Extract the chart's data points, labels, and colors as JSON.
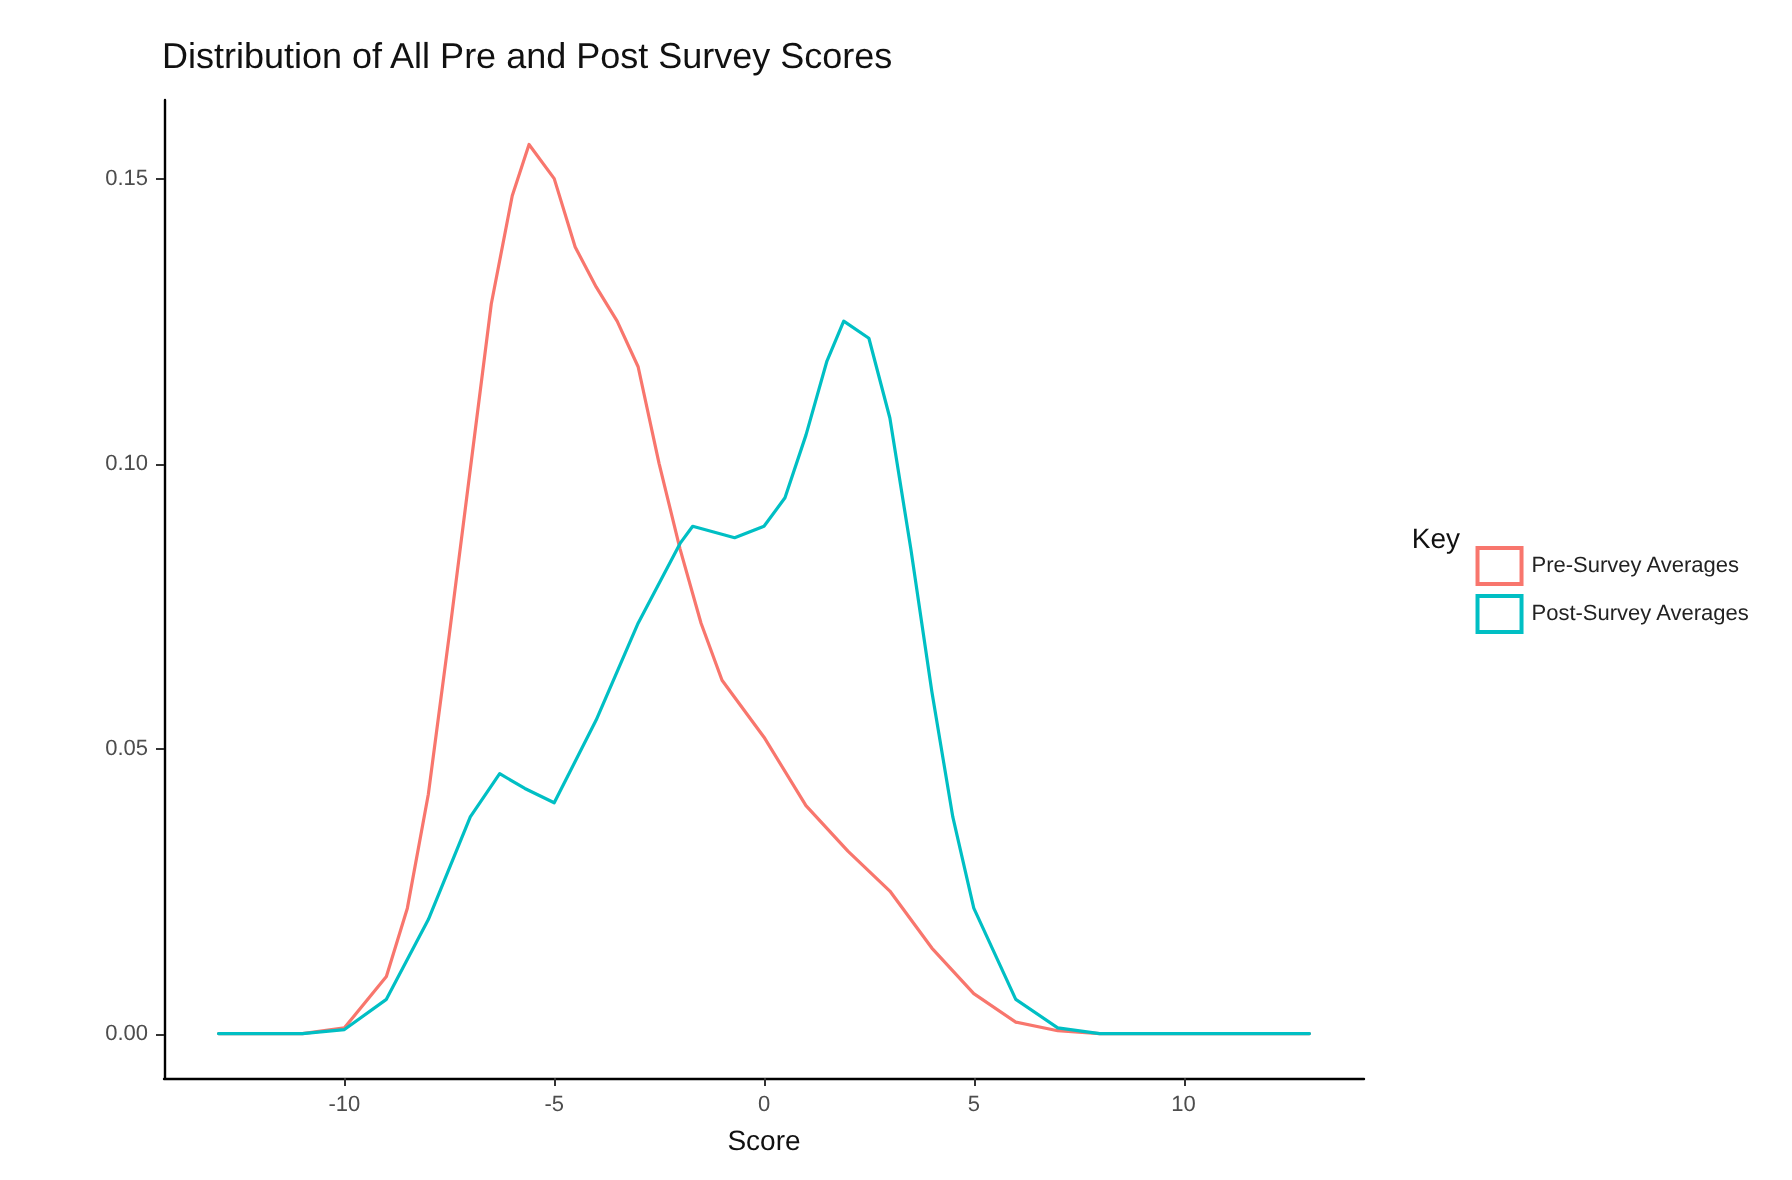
{
  "chart_data": {
    "type": "line",
    "title": "Distribution of All Pre and Post Survey Scores",
    "xlabel": "Score",
    "legend_title": "Key",
    "legend": "right",
    "grid": false,
    "marker": "none",
    "line_style": "solid",
    "xlim": [
      -14.3,
      14.3
    ],
    "xticks": [
      -10,
      -5,
      0,
      5,
      10
    ],
    "ylim": [
      -0.0078,
      0.1638
    ],
    "yticks": [
      {
        "value": 0,
        "label": "0.00"
      },
      {
        "value": 0.05,
        "label": "0.05"
      },
      {
        "value": 0.1,
        "label": "0.10"
      },
      {
        "value": 0.15,
        "label": "0.15"
      }
    ],
    "series": [
      {
        "name": "Pre-Survey Averages",
        "color": "#f8766d",
        "x": [
          -13,
          -11,
          -10,
          -9,
          -8.5,
          -8,
          -7.5,
          -7,
          -6.5,
          -6,
          -5.6,
          -5,
          -4.5,
          -4,
          -3.5,
          -3,
          -2.5,
          -2,
          -1.5,
          -1,
          0,
          1,
          2,
          3,
          4,
          5,
          6,
          7,
          8,
          10,
          13
        ],
        "values": [
          0,
          0,
          0.001,
          0.01,
          0.022,
          0.042,
          0.07,
          0.099,
          0.128,
          0.147,
          0.156,
          0.15,
          0.138,
          0.131,
          0.125,
          0.117,
          0.1,
          0.085,
          0.072,
          0.062,
          0.052,
          0.04,
          0.032,
          0.025,
          0.015,
          0.007,
          0.002,
          0.0005,
          0,
          0,
          0
        ]
      },
      {
        "name": "Post-Survey Averages",
        "color": "#00bfc4",
        "x": [
          -13,
          -11,
          -10,
          -9,
          -8,
          -7,
          -6.3,
          -5.7,
          -5,
          -4,
          -3,
          -2,
          -1.7,
          -1.2,
          -0.7,
          0,
          0.5,
          1,
          1.5,
          1.9,
          2.5,
          3,
          3.5,
          4,
          4.5,
          5,
          6,
          7,
          8,
          10,
          13
        ],
        "values": [
          0,
          0,
          0.0007,
          0.006,
          0.02,
          0.038,
          0.0456,
          0.043,
          0.0405,
          0.055,
          0.072,
          0.086,
          0.089,
          0.088,
          0.087,
          0.089,
          0.094,
          0.105,
          0.118,
          0.125,
          0.122,
          0.108,
          0.085,
          0.06,
          0.038,
          0.022,
          0.006,
          0.001,
          0,
          0,
          0
        ]
      }
    ]
  }
}
